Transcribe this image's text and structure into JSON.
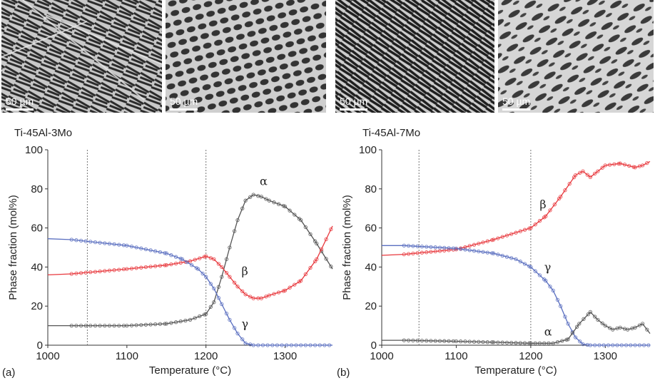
{
  "micrographs": [
    {
      "scale_label": "50 µm"
    },
    {
      "scale_label": "50 µm"
    },
    {
      "scale_label": "50 µm"
    },
    {
      "scale_label": "50 µm"
    }
  ],
  "panels": [
    {
      "label": "(a)",
      "alloy": "Ti-45Al-3Mo"
    },
    {
      "label": "(b)",
      "alloy": "Ti-45Al-7Mo"
    }
  ],
  "colors": {
    "alpha": "#555555",
    "beta": "#e8383d",
    "gamma": "#5a6fc0",
    "marker_line": "#666666"
  },
  "chart_data": [
    {
      "type": "line",
      "title": "Ti-45Al-3Mo",
      "xlabel": "Temperature (°C)",
      "ylabel": "Phase fraction (mol%)",
      "xlim": [
        1000,
        1360
      ],
      "ylim": [
        0,
        100
      ],
      "xticks": [
        1000,
        1100,
        1200,
        1300
      ],
      "yticks": [
        0,
        20,
        40,
        60,
        80,
        100
      ],
      "vlines": [
        1050,
        1200
      ],
      "series": [
        {
          "name": "α",
          "label_at": [
            1268,
            82
          ],
          "x": [
            1000,
            1030,
            1100,
            1150,
            1180,
            1200,
            1210,
            1220,
            1230,
            1240,
            1250,
            1260,
            1270,
            1280,
            1300,
            1320,
            1340,
            1360
          ],
          "y": [
            10,
            10,
            10,
            11,
            13,
            16,
            22,
            35,
            50,
            64,
            74,
            77,
            76,
            74,
            71,
            64,
            52,
            39
          ]
        },
        {
          "name": "β",
          "label_at": [
            1245,
            36
          ],
          "x": [
            1000,
            1030,
            1100,
            1150,
            1180,
            1200,
            1210,
            1220,
            1230,
            1240,
            1250,
            1260,
            1270,
            1280,
            1300,
            1320,
            1340,
            1360
          ],
          "y": [
            36,
            36.5,
            39,
            41,
            43,
            45.5,
            44,
            40,
            35,
            30,
            26,
            24,
            24,
            25.5,
            28,
            33,
            44,
            61
          ]
        },
        {
          "name": "γ",
          "label_at": [
            1245,
            9
          ],
          "x": [
            1000,
            1030,
            1100,
            1150,
            1170,
            1190,
            1200,
            1210,
            1220,
            1230,
            1240,
            1250,
            1260,
            1360
          ],
          "y": [
            54.5,
            54,
            51,
            47,
            44,
            39,
            35,
            29,
            21,
            13,
            6,
            1,
            0,
            0
          ]
        }
      ]
    },
    {
      "type": "line",
      "title": "Ti-45Al-7Mo",
      "xlabel": "Temperature (°C)",
      "ylabel": "Phase fraction (mol%)",
      "xlim": [
        1000,
        1360
      ],
      "ylim": [
        0,
        100
      ],
      "xticks": [
        1000,
        1100,
        1200,
        1300
      ],
      "yticks": [
        0,
        20,
        40,
        60,
        80,
        100
      ],
      "vlines": [
        1050,
        1200
      ],
      "series": [
        {
          "name": "β",
          "label_at": [
            1212,
            70
          ],
          "x": [
            1000,
            1030,
            1100,
            1150,
            1200,
            1220,
            1240,
            1260,
            1270,
            1280,
            1290,
            1300,
            1320,
            1340,
            1350,
            1360
          ],
          "y": [
            46,
            46.5,
            49,
            54,
            60,
            66,
            76,
            87,
            89,
            86,
            89,
            92,
            93,
            91,
            92,
            94
          ]
        },
        {
          "name": "γ",
          "label_at": [
            1218,
            38
          ],
          "x": [
            1000,
            1030,
            1100,
            1150,
            1180,
            1200,
            1220,
            1230,
            1240,
            1250,
            1260,
            1270,
            1280,
            1360
          ],
          "y": [
            51,
            51,
            49.5,
            47,
            44,
            40,
            33,
            28,
            20,
            11,
            4,
            0.5,
            0,
            0
          ]
        },
        {
          "name": "α",
          "label_at": [
            1218,
            5
          ],
          "x": [
            1000,
            1030,
            1100,
            1150,
            1200,
            1230,
            1250,
            1265,
            1280,
            1290,
            1300,
            1310,
            1320,
            1330,
            1340,
            1350,
            1360
          ],
          "y": [
            2.5,
            2.5,
            2,
            1.5,
            1,
            1,
            3,
            11,
            17,
            13,
            10,
            8,
            9,
            8,
            9,
            11,
            6
          ]
        }
      ]
    }
  ]
}
